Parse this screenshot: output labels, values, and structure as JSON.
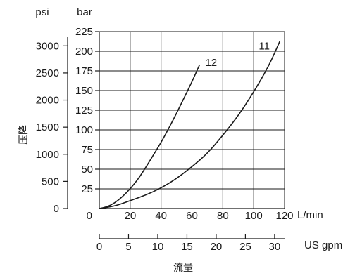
{
  "chart_data": {
    "type": "line",
    "unit_labels": {
      "psi": "psi",
      "bar": "bar",
      "lmin": "L/min",
      "gpm": "US gpm"
    },
    "ylabel": "压降",
    "xlabel": "流量",
    "y_bar": {
      "range": [
        0,
        225
      ],
      "ticks": [
        25,
        50,
        75,
        100,
        125,
        150,
        175,
        200,
        225
      ],
      "tick_labels": [
        "25",
        "50",
        "75",
        "100",
        "125",
        "150",
        "175",
        "200",
        "225"
      ],
      "zero_label": "0"
    },
    "y_psi": {
      "range": [
        0,
        3263
      ],
      "ticks": [
        0,
        500,
        1000,
        1500,
        2000,
        2500,
        3000
      ],
      "tick_labels": [
        "0",
        "500",
        "1000",
        "1500",
        "2000",
        "2500",
        "3000"
      ]
    },
    "x_lmin": {
      "range": [
        0,
        120
      ],
      "ticks": [
        20,
        40,
        60,
        80,
        100,
        120
      ],
      "tick_labels": [
        "20",
        "40",
        "60",
        "80",
        "100",
        "120"
      ]
    },
    "x_gpm": {
      "range": [
        0,
        31.7
      ],
      "ticks": [
        0,
        5,
        10,
        15,
        20,
        25,
        30
      ],
      "tick_labels": [
        "0",
        "5",
        "10",
        "15",
        "20",
        "25",
        "30"
      ]
    },
    "grid": true,
    "series": [
      {
        "name": "12",
        "x": [
          0,
          5,
          10,
          15,
          20,
          25,
          30,
          35,
          40,
          45,
          50,
          55,
          60,
          65
        ],
        "y": [
          0,
          2,
          7,
          15,
          25,
          37,
          52,
          68,
          84,
          102,
          121,
          141,
          161,
          183
        ]
      },
      {
        "name": "11",
        "x": [
          0,
          10,
          20,
          30,
          40,
          50,
          60,
          70,
          80,
          90,
          100,
          110,
          117
        ],
        "y": [
          0,
          3,
          10,
          17,
          26,
          38,
          53,
          70,
          93,
          118,
          148,
          182,
          213
        ]
      }
    ]
  }
}
